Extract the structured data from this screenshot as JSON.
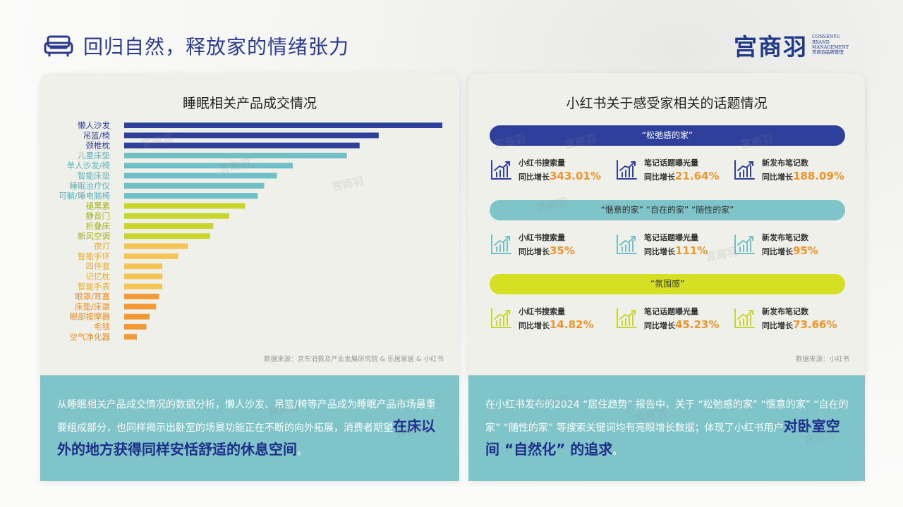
{
  "header": {
    "title": "回归自然，释放家的情绪张力"
  },
  "logo": {
    "cn": "宫商羽",
    "en_lines": [
      "CONSENYU",
      "BRAND",
      "MANAGEMENT",
      "宫商羽品牌管理"
    ]
  },
  "watermark_text": "宫商羽",
  "chart_data": {
    "type": "bar",
    "orientation": "horizontal",
    "title": "睡眠相关产品成交情况",
    "xlabel": "",
    "ylabel": "",
    "categories": [
      "懒人沙发",
      "吊篮/椅",
      "颈椎枕",
      "儿童床垫",
      "单人沙发/椅",
      "智能床垫",
      "睡眠治疗仪",
      "可躺/睡电脑椅",
      "褪黑素",
      "静音门",
      "折叠床",
      "新风空调",
      "夜灯",
      "智能手环",
      "四件套",
      "记忆枕",
      "智能手表",
      "眼罩/耳塞",
      "床垫/床罩",
      "眼部按摩器",
      "毛毯",
      "空气净化器"
    ],
    "values": [
      100,
      80,
      74,
      70,
      53,
      48,
      44,
      42,
      38,
      33,
      28,
      27,
      20,
      17,
      12,
      12,
      12,
      11,
      10,
      8,
      7,
      4
    ],
    "bar_colors": [
      "#2f3f9c",
      "#2f3f9c",
      "#2f3f9c",
      "#6fbfc6",
      "#6fbfc6",
      "#6fbfc6",
      "#6fbfc6",
      "#6fbfc6",
      "#c8d62c",
      "#c8d62c",
      "#c8d62c",
      "#c8d62c",
      "#f6c455",
      "#f6c455",
      "#f6c455",
      "#f6c455",
      "#f6c455",
      "#f39a36",
      "#f39a36",
      "#f39a36",
      "#f39a36",
      "#f39a36"
    ],
    "label_colors": [
      "#2f3f9c",
      "#2f3f9c",
      "#2f3f9c",
      "#5ab2bb",
      "#5ab2bb",
      "#5ab2bb",
      "#5ab2bb",
      "#5ab2bb",
      "#a3b21e",
      "#a3b21e",
      "#a3b21e",
      "#a3b21e",
      "#e9ad2f",
      "#e9ad2f",
      "#e9ad2f",
      "#e9ad2f",
      "#e9ad2f",
      "#ee8a1e",
      "#ee8a1e",
      "#ee8a1e",
      "#ee8a1e",
      "#ee8a1e"
    ],
    "source": "数据来源：京东消费及产业发展研究院 & 乐居家居 & 小红书"
  },
  "left_text": {
    "body": "从睡眠相关产品成交情况的数据分析，懒人沙发、吊篮/椅等产品成为睡眠产品市场最重要组成部分，也同样揭示出卧室的场景功能正在不断的向外拓展，消费者期望",
    "highlight": "在床以外的地方获得同样安恬舒适的休息空间",
    "end": "。"
  },
  "right_panel": {
    "title": "小红书关于感受家相关的话题情况",
    "source": "数据来源：小红书",
    "prefix": "同比增长",
    "topics": [
      {
        "label": "“松弛感的家”",
        "bg": "#2f3f9c",
        "fg": "#ffffff",
        "icon_color": "#2f3f9c",
        "stats": [
          {
            "label": "小红书搜索量",
            "value": "343.01%"
          },
          {
            "label": "笔记话题曝光量",
            "value": "21.64%"
          },
          {
            "label": "新发布笔记数",
            "value": "188.09%"
          }
        ]
      },
      {
        "label": "“惬意的家”  “自在的家”  “随性的家”",
        "bg": "#7ec4c9",
        "fg": "#333333",
        "icon_color": "#6fbfc6",
        "stats": [
          {
            "label": "小红书搜索量",
            "value": "35%"
          },
          {
            "label": "笔记话题曝光量",
            "value": "111%"
          },
          {
            "label": "新发布笔记数",
            "value": "95%"
          }
        ]
      },
      {
        "label": "“氛围感”",
        "bg": "#d4e021",
        "fg": "#333333",
        "icon_color": "#c8d62c",
        "stats": [
          {
            "label": "小红书搜索量",
            "value": "14.82%"
          },
          {
            "label": "笔记话题曝光量",
            "value": "45.23%"
          },
          {
            "label": "新发布笔记数",
            "value": "73.66%"
          }
        ]
      }
    ]
  },
  "right_text": {
    "body": "在小红书发布的2024 “居住趋势” 报告中，关于 “松弛感的家” “惬意的家” “自在的家” “随性的家” 等搜索关键词均有亮眼增长数据；体现了小红书用户",
    "highlight": "对卧室空间 “自然化” 的追求",
    "end": "。"
  }
}
